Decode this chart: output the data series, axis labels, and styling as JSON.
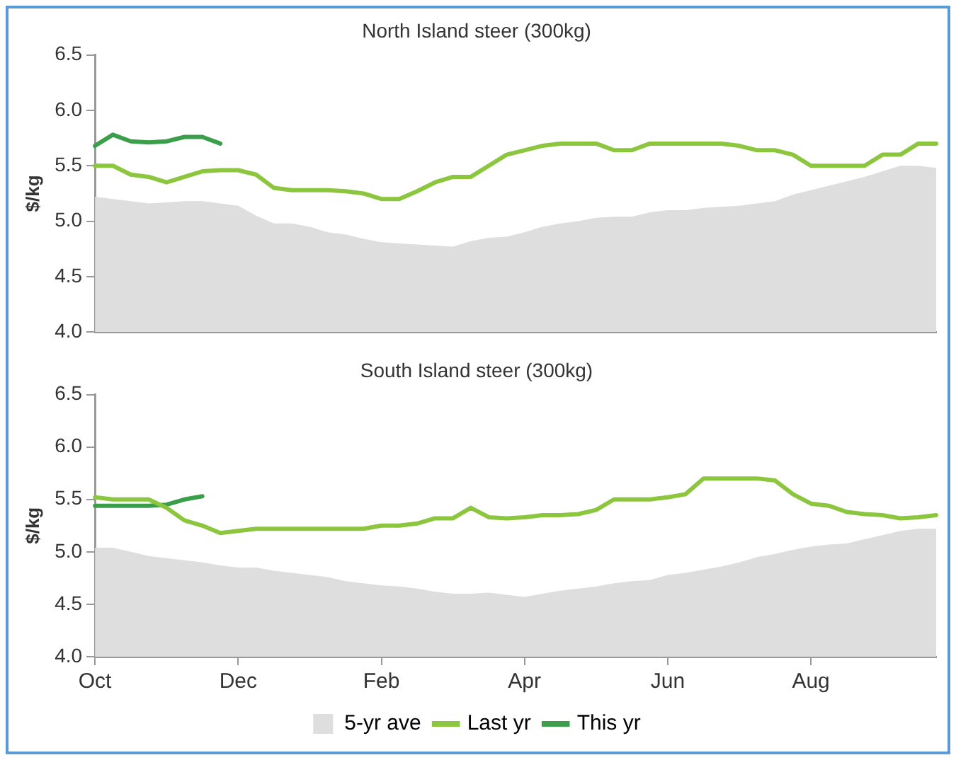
{
  "chart_data": [
    {
      "type": "line",
      "title": "North Island steer (300kg)",
      "ylabel": "$/kg",
      "categories": [
        null,
        null,
        null,
        null,
        null,
        null,
        null,
        null,
        null,
        null,
        null,
        null,
        null,
        null,
        null,
        null,
        null,
        null,
        null,
        null,
        null,
        null,
        null,
        null,
        null,
        null,
        null,
        null,
        null,
        null,
        null,
        null,
        null,
        null,
        null,
        null,
        null,
        null,
        null,
        null,
        null,
        null,
        null,
        null,
        null,
        null,
        null,
        null
      ],
      "ylim": [
        4.0,
        6.5
      ],
      "yticks": [
        {
          "value": 4.0,
          "label": "4.0"
        },
        4.5,
        {
          "value": 5.0,
          "label": "5.0"
        },
        5.5,
        {
          "value": 6.0,
          "label": "6.0"
        },
        6.5
      ],
      "tick_labels": "y",
      "legend": false,
      "marker": "none",
      "series": [
        {
          "type": "area",
          "color": "#dedede",
          "values": [
            5.22,
            5.2,
            5.18,
            5.16,
            5.17,
            5.18,
            5.18,
            5.16,
            5.14,
            5.05,
            4.98,
            4.98,
            4.95,
            4.9,
            4.88,
            4.84,
            4.81,
            4.8,
            4.79,
            4.78,
            4.77,
            4.82,
            4.85,
            4.86,
            4.9,
            4.95,
            4.98,
            5.0,
            5.03,
            5.04,
            5.04,
            5.08,
            5.1,
            5.1,
            5.12,
            5.13,
            5.14,
            5.16,
            5.18,
            5.24,
            5.28,
            5.32,
            5.36,
            5.4,
            5.45,
            5.5,
            5.5,
            5.48
          ]
        },
        {
          "type": "line",
          "color": "#8cc63f",
          "values": [
            5.5,
            5.5,
            5.42,
            5.4,
            5.35,
            5.4,
            5.45,
            5.46,
            5.46,
            5.42,
            5.3,
            5.28,
            5.28,
            5.28,
            5.27,
            5.25,
            5.2,
            5.2,
            5.27,
            5.35,
            5.4,
            5.4,
            5.5,
            5.6,
            5.64,
            5.68,
            5.7,
            5.7,
            5.7,
            5.64,
            5.64,
            5.7,
            5.7,
            5.7,
            5.7,
            5.7,
            5.68,
            5.64,
            5.64,
            5.6,
            5.5,
            5.5,
            5.5,
            5.5,
            5.6,
            5.6,
            5.7,
            5.7
          ]
        },
        {
          "type": "line",
          "color": "#3a9e4a",
          "values": [
            5.68,
            5.78,
            5.72,
            5.71,
            5.72,
            5.76,
            5.76,
            5.7,
            null,
            null,
            null,
            null,
            null,
            null,
            null,
            null,
            null,
            null,
            null,
            null,
            null,
            null,
            null,
            null,
            null,
            null,
            null,
            null,
            null,
            null,
            null,
            null,
            null,
            null,
            null,
            null,
            null,
            null,
            null,
            null,
            null,
            null,
            null,
            null,
            null,
            null,
            null,
            null
          ]
        }
      ]
    },
    {
      "type": "line",
      "title": "South Island steer (300kg)",
      "ylabel": "$/kg",
      "categories": [
        "Oct",
        null,
        null,
        null,
        null,
        null,
        null,
        null,
        "Dec",
        null,
        null,
        null,
        null,
        null,
        null,
        null,
        "Feb",
        null,
        null,
        null,
        null,
        null,
        null,
        null,
        "Apr",
        null,
        null,
        null,
        null,
        null,
        null,
        null,
        "Jun",
        null,
        null,
        null,
        null,
        null,
        null,
        null,
        "Aug",
        null,
        null,
        null,
        null,
        null,
        null,
        null
      ],
      "ylim": [
        4.0,
        6.5
      ],
      "yticks": [
        {
          "value": 4.0,
          "label": "4.0"
        },
        4.5,
        {
          "value": 5.0,
          "label": "5.0"
        },
        5.5,
        {
          "value": 6.0,
          "label": "6.0"
        },
        6.5
      ],
      "legend": "bottom",
      "marker": "none",
      "series": [
        {
          "type": "area",
          "name": "5-yr ave",
          "color": "#dedede",
          "values": [
            5.04,
            5.04,
            5.0,
            4.96,
            4.94,
            4.92,
            4.9,
            4.87,
            4.85,
            4.85,
            4.82,
            4.8,
            4.78,
            4.76,
            4.72,
            4.7,
            4.68,
            4.67,
            4.65,
            4.62,
            4.6,
            4.6,
            4.61,
            4.59,
            4.57,
            4.6,
            4.63,
            4.65,
            4.67,
            4.7,
            4.72,
            4.73,
            4.78,
            4.8,
            4.83,
            4.86,
            4.9,
            4.95,
            4.98,
            5.02,
            5.05,
            5.07,
            5.08,
            5.12,
            5.16,
            5.2,
            5.22,
            5.22
          ]
        },
        {
          "type": "line",
          "name": "Last yr",
          "color": "#8cc63f",
          "values": [
            5.52,
            5.5,
            5.5,
            5.5,
            5.42,
            5.3,
            5.25,
            5.18,
            5.2,
            5.22,
            5.22,
            5.22,
            5.22,
            5.22,
            5.22,
            5.22,
            5.25,
            5.25,
            5.27,
            5.32,
            5.32,
            5.42,
            5.33,
            5.32,
            5.33,
            5.35,
            5.35,
            5.36,
            5.4,
            5.5,
            5.5,
            5.5,
            5.52,
            5.55,
            5.7,
            5.7,
            5.7,
            5.7,
            5.68,
            5.55,
            5.46,
            5.44,
            5.38,
            5.36,
            5.35,
            5.32,
            5.33,
            5.35
          ]
        },
        {
          "type": "line",
          "name": "This yr",
          "color": "#3a9e4a",
          "values": [
            5.44,
            5.44,
            5.44,
            5.44,
            5.45,
            5.5,
            5.53,
            null,
            null,
            null,
            null,
            null,
            null,
            null,
            null,
            null,
            null,
            null,
            null,
            null,
            null,
            null,
            null,
            null,
            null,
            null,
            null,
            null,
            null,
            null,
            null,
            null,
            null,
            null,
            null,
            null,
            null,
            null,
            null,
            null,
            null,
            null,
            null,
            null,
            null,
            null,
            null,
            null
          ]
        }
      ]
    }
  ]
}
